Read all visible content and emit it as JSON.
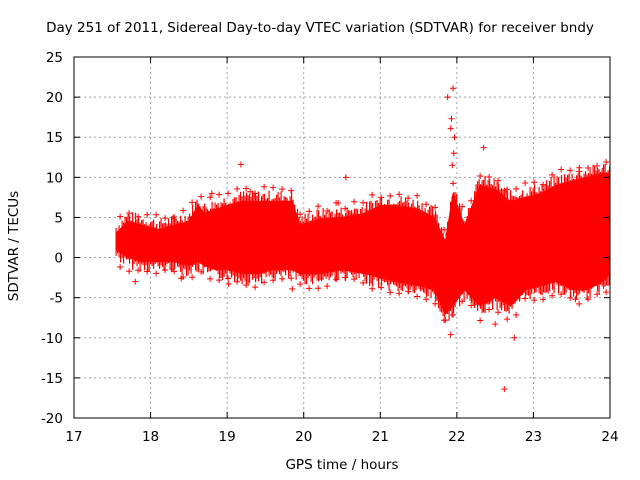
{
  "chart_data": {
    "type": "scatter",
    "title": "Day 251 of 2011, Sidereal Day-to-day VTEC variation (SDTVAR) for receiver bndy",
    "xlabel": "GPS time / hours",
    "ylabel": "SDTVAR / TECUs",
    "xlim": [
      17,
      24
    ],
    "ylim": [
      -20,
      25
    ],
    "xticks": [
      "17",
      "18",
      "19",
      "20",
      "21",
      "22",
      "23",
      "24"
    ],
    "yticks": [
      "-20",
      "-15",
      "-10",
      "-5",
      "0",
      "5",
      "10",
      "15",
      "20",
      "25"
    ],
    "grid": true,
    "marker": "+",
    "color": "#ff0000",
    "series": [
      {
        "name": "SDTVAR",
        "band": {
          "x": [
            17.55,
            17.7,
            17.9,
            18.1,
            18.3,
            18.5,
            18.62,
            18.7,
            18.85,
            19.0,
            19.2,
            19.4,
            19.6,
            19.85,
            19.95,
            20.2,
            20.5,
            20.8,
            21.0,
            21.2,
            21.5,
            21.7,
            21.85,
            21.95,
            22.1,
            22.3,
            22.5,
            22.7,
            22.9,
            23.1,
            23.3,
            23.5,
            23.7,
            23.9,
            24.0
          ],
          "upper": [
            3.0,
            4.5,
            4.0,
            3.5,
            4.0,
            4.5,
            6.5,
            5.5,
            6.0,
            6.5,
            7.0,
            7.0,
            7.0,
            7.0,
            4.0,
            4.8,
            5.0,
            5.5,
            6.5,
            6.5,
            6.0,
            5.0,
            2.0,
            8.0,
            4.0,
            9.0,
            8.5,
            7.0,
            7.5,
            8.0,
            9.0,
            9.5,
            10.0,
            10.5,
            10.5
          ],
          "lower": [
            1.0,
            0.0,
            -0.5,
            -0.5,
            -0.5,
            -1.0,
            -0.5,
            -1.0,
            -1.5,
            -1.5,
            -2.0,
            -2.0,
            -1.5,
            -1.5,
            -2.0,
            -2.0,
            -1.5,
            -2.0,
            -2.5,
            -3.0,
            -3.5,
            -4.0,
            -7.0,
            -6.0,
            -4.0,
            -6.0,
            -5.0,
            -6.0,
            -4.0,
            -3.5,
            -3.0,
            -4.0,
            -4.0,
            -3.0,
            -2.0
          ]
        },
        "outliers": [
          {
            "x": 17.8,
            "y": -3.0
          },
          {
            "x": 18.4,
            "y": -2.6
          },
          {
            "x": 18.8,
            "y": 8.0
          },
          {
            "x": 19.02,
            "y": -3.3
          },
          {
            "x": 19.18,
            "y": 11.6
          },
          {
            "x": 19.3,
            "y": 8.2
          },
          {
            "x": 19.85,
            "y": -3.9
          },
          {
            "x": 20.45,
            "y": 6.8
          },
          {
            "x": 20.55,
            "y": 10.0
          },
          {
            "x": 21.85,
            "y": -7.8
          },
          {
            "x": 21.92,
            "y": 16.1
          },
          {
            "x": 21.88,
            "y": 20.0
          },
          {
            "x": 21.95,
            "y": 21.1
          },
          {
            "x": 21.93,
            "y": 17.3
          },
          {
            "x": 21.97,
            "y": 15.0
          },
          {
            "x": 21.96,
            "y": 13.0
          },
          {
            "x": 21.94,
            "y": 11.5
          },
          {
            "x": 21.92,
            "y": -9.6
          },
          {
            "x": 22.35,
            "y": 13.7
          },
          {
            "x": 22.5,
            "y": -8.3
          },
          {
            "x": 22.62,
            "y": -16.4
          },
          {
            "x": 22.75,
            "y": -10.0
          },
          {
            "x": 23.55,
            "y": -5.2
          },
          {
            "x": 23.6,
            "y": 11.2
          }
        ]
      }
    ]
  }
}
